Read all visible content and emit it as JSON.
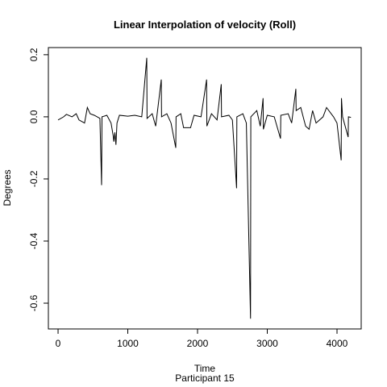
{
  "chart_data": {
    "type": "line",
    "title": "Linear Interpolation of velocity (Roll)",
    "x_label": "Time",
    "subtitle": "Participant  15",
    "y_label": "Degrees",
    "x": [
      0,
      80,
      120,
      200,
      260,
      300,
      380,
      420,
      460,
      520,
      600,
      624,
      630,
      700,
      760,
      790,
      800,
      815,
      830,
      845,
      880,
      1000,
      1100,
      1200,
      1272,
      1276,
      1350,
      1400,
      1480,
      1484,
      1560,
      1620,
      1688,
      1692,
      1760,
      1800,
      1900,
      1950,
      2050,
      2130,
      2134,
      2200,
      2280,
      2340,
      2344,
      2450,
      2500,
      2560,
      2564,
      2650,
      2700,
      2760,
      2764,
      2850,
      2900,
      2940,
      2944,
      3000,
      3100,
      3190,
      3194,
      3300,
      3350,
      3410,
      3414,
      3480,
      3550,
      3600,
      3650,
      3700,
      3800,
      3850,
      3950,
      4000,
      4060,
      4064,
      4080,
      4160,
      4164,
      4200
    ],
    "series": [
      {
        "color": "#000000",
        "values": [
          -0.01,
          0.0,
          0.008,
          0.0,
          0.01,
          -0.01,
          -0.02,
          0.03,
          0.01,
          0.005,
          -0.005,
          -0.22,
          0.0,
          0.005,
          -0.02,
          -0.06,
          -0.08,
          -0.05,
          -0.09,
          -0.02,
          0.005,
          0.002,
          0.005,
          0.0,
          0.19,
          -0.005,
          0.01,
          -0.03,
          0.12,
          0.0,
          0.01,
          -0.02,
          -0.1,
          0.0,
          0.01,
          -0.035,
          -0.035,
          0.005,
          0.0,
          0.12,
          -0.03,
          0.01,
          -0.01,
          0.105,
          0.0,
          0.005,
          -0.01,
          -0.23,
          0.0,
          0.01,
          -0.02,
          -0.65,
          0.0,
          0.02,
          -0.03,
          0.06,
          -0.04,
          0.005,
          0.0,
          -0.07,
          0.005,
          0.01,
          -0.02,
          0.09,
          0.02,
          0.03,
          -0.03,
          -0.04,
          0.02,
          -0.02,
          0.0,
          0.03,
          0.0,
          -0.02,
          -0.14,
          0.06,
          0.0,
          -0.065,
          0.0,
          -0.002
        ]
      }
    ],
    "xlim": [
      -139,
      4347
    ],
    "ylim": [
      -0.683,
      0.223
    ],
    "xticks": [
      0,
      1000,
      2000,
      3000,
      4000
    ],
    "yticks": [
      -0.6,
      -0.4,
      -0.2,
      {
        "value": 0,
        "label": "0.0"
      },
      0.2
    ]
  }
}
